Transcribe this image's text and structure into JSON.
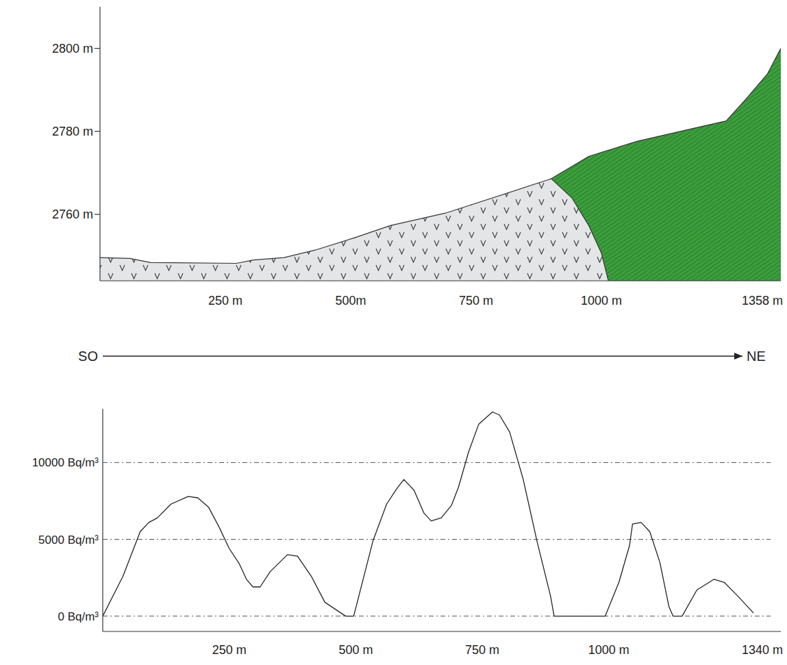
{
  "chart_data": [
    {
      "type": "cross-section",
      "x": [
        0,
        60,
        101,
        272,
        306,
        367,
        429,
        511,
        579,
        689,
        893,
        900,
        975,
        1071,
        1208,
        1249,
        1290,
        1331,
        1358
      ],
      "values": [
        2749.6,
        2749.4,
        2748.4,
        2748.2,
        2749.0,
        2749.6,
        2751.4,
        2754.5,
        2757.3,
        2760.3,
        2768.3,
        2768.6,
        2774.0,
        2777.6,
        2781.4,
        2782.5,
        2788.0,
        2793.8,
        2800.0
      ],
      "boundary": {
        "x": [
          900,
          941,
          975,
          1000,
          1014
        ],
        "values": [
          2768.6,
          2764.0,
          2757.3,
          2750.7,
          2744.0
        ]
      },
      "colors": [
        "#e4e5e7",
        "#3c9e3c"
      ],
      "xlim": [
        0,
        1358
      ],
      "xticks": [
        {
          "value": 250,
          "label": "250 m"
        },
        {
          "value": 500,
          "label": "500m"
        },
        {
          "value": 750,
          "label": "750 m"
        },
        {
          "value": 1000,
          "label": "1000 m"
        },
        {
          "value": 1358,
          "label": "1358 m"
        }
      ],
      "ylim": [
        2744,
        2810
      ],
      "yticks": [
        {
          "value": 2760,
          "label": "2760 m"
        },
        {
          "value": 2780,
          "label": "2780 m"
        },
        {
          "value": 2800,
          "label": "2800 m"
        }
      ],
      "annotations": [
        "SO",
        "NE"
      ]
    },
    {
      "type": "line",
      "x": [
        0,
        40,
        74,
        91,
        108,
        135,
        169,
        188,
        209,
        230,
        250,
        270,
        284,
        297,
        311,
        331,
        365,
        385,
        412,
        439,
        480,
        496,
        534,
        561,
        581,
        595,
        615,
        635,
        649,
        669,
        689,
        703,
        723,
        743,
        770,
        784,
        804,
        831,
        858,
        885,
        892,
        993,
        1020,
        1041,
        1047,
        1064,
        1081,
        1101,
        1119,
        1127,
        1145,
        1174,
        1208,
        1228,
        1255,
        1286
      ],
      "values": [
        0,
        2600,
        5500,
        6100,
        6400,
        7300,
        7800,
        7700,
        7100,
        5800,
        4400,
        3400,
        2400,
        1900,
        1900,
        2900,
        4000,
        3900,
        2600,
        900,
        0,
        0,
        4900,
        7300,
        8300,
        8900,
        8200,
        6700,
        6200,
        6400,
        7200,
        8400,
        10700,
        12500,
        13300,
        13100,
        12000,
        8900,
        4900,
        1300,
        0,
        0,
        2200,
        4600,
        6000,
        6100,
        5500,
        3500,
        600,
        0,
        0,
        1700,
        2400,
        2200,
        1300,
        200
      ],
      "color": "#222222",
      "xlim": [
        0,
        1340
      ],
      "xticks": [
        {
          "value": 250,
          "label": "250 m"
        },
        {
          "value": 500,
          "label": "500 m"
        },
        {
          "value": 750,
          "label": "750 m"
        },
        {
          "value": 1000,
          "label": "1000 m"
        },
        {
          "value": 1340,
          "label": "1340 m"
        }
      ],
      "ylim": [
        -1000,
        13500
      ],
      "yticks": [
        {
          "value": 0,
          "label": "0 Bq/m³"
        },
        {
          "value": 5000,
          "label": "5000 Bq/m³"
        },
        {
          "value": 10000,
          "label": "10000 Bq/m³"
        }
      ],
      "grid": true
    }
  ]
}
